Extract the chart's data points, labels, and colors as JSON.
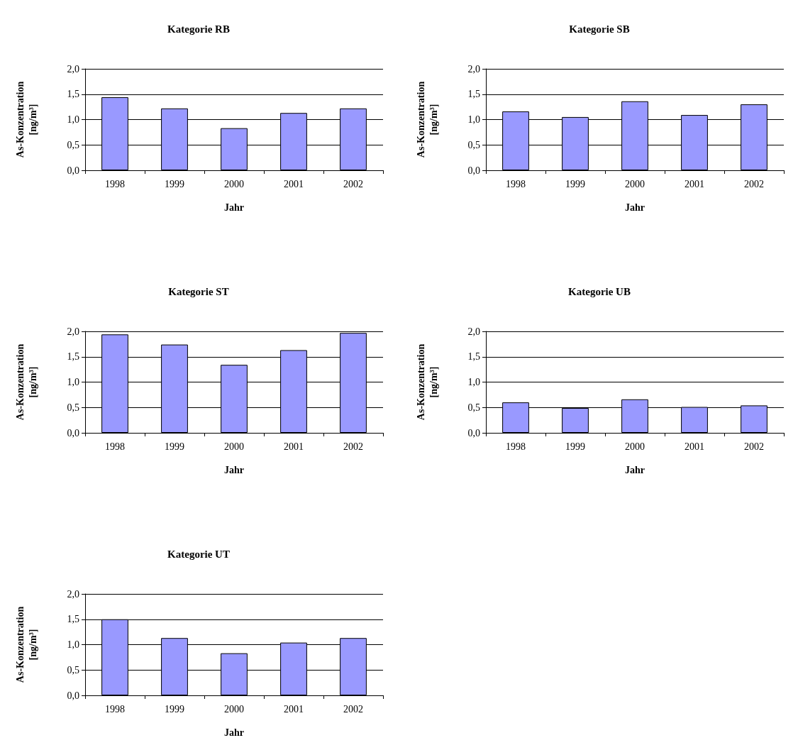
{
  "chart_data": [
    {
      "type": "bar",
      "title": "Kategorie RB",
      "xlabel": "Jahr",
      "ylabel": "As-Konzentration\n[ng/m³]",
      "categories": [
        "1998",
        "1999",
        "2000",
        "2001",
        "2002"
      ],
      "values": [
        1.44,
        1.22,
        0.83,
        1.13,
        1.22
      ],
      "color": "#9999ff",
      "ylim": [
        0,
        2
      ],
      "yticks": [
        {
          "value": 0,
          "label": "0,0"
        },
        {
          "value": 0.5,
          "label": "0,5"
        },
        {
          "value": 1,
          "label": "1,0"
        },
        {
          "value": 1.5,
          "label": "1,5"
        },
        {
          "value": 2,
          "label": "2,0"
        }
      ],
      "grid": "y"
    },
    {
      "type": "bar",
      "title": "Kategorie SB",
      "xlabel": "Jahr",
      "ylabel": "As-Konzentration\n[ng/m³]",
      "categories": [
        "1998",
        "1999",
        "2000",
        "2001",
        "2002"
      ],
      "values": [
        1.16,
        1.05,
        1.36,
        1.09,
        1.3
      ],
      "color": "#9999ff",
      "ylim": [
        0,
        2
      ],
      "yticks": [
        {
          "value": 0,
          "label": "0,0"
        },
        {
          "value": 0.5,
          "label": "0,5"
        },
        {
          "value": 1,
          "label": "1,0"
        },
        {
          "value": 1.5,
          "label": "1,5"
        },
        {
          "value": 2,
          "label": "2,0"
        }
      ],
      "grid": "y"
    },
    {
      "type": "bar",
      "title": "Kategorie ST",
      "xlabel": "Jahr",
      "ylabel": "As-Konzentration\n[ng/m³]",
      "categories": [
        "1998",
        "1999",
        "2000",
        "2001",
        "2002"
      ],
      "values": [
        1.94,
        1.74,
        1.34,
        1.63,
        1.97
      ],
      "color": "#9999ff",
      "ylim": [
        0,
        2
      ],
      "yticks": [
        {
          "value": 0,
          "label": "0,0"
        },
        {
          "value": 0.5,
          "label": "0,5"
        },
        {
          "value": 1,
          "label": "1,0"
        },
        {
          "value": 1.5,
          "label": "1,5"
        },
        {
          "value": 2,
          "label": "2,0"
        }
      ],
      "grid": "y"
    },
    {
      "type": "bar",
      "title": "Kategorie UB",
      "xlabel": "Jahr",
      "ylabel": "As-Konzentration\n[ng/m³]",
      "categories": [
        "1998",
        "1999",
        "2000",
        "2001",
        "2002"
      ],
      "values": [
        0.6,
        0.49,
        0.66,
        0.51,
        0.54
      ],
      "color": "#9999ff",
      "ylim": [
        0,
        2
      ],
      "yticks": [
        {
          "value": 0,
          "label": "0,0"
        },
        {
          "value": 0.5,
          "label": "0,5"
        },
        {
          "value": 1,
          "label": "1,0"
        },
        {
          "value": 1.5,
          "label": "1,5"
        },
        {
          "value": 2,
          "label": "2,0"
        }
      ],
      "grid": "y"
    },
    {
      "type": "bar",
      "title": "Kategorie UT",
      "xlabel": "Jahr",
      "ylabel": "As-Konzentration\n[ng/m³]",
      "categories": [
        "1998",
        "1999",
        "2000",
        "2001",
        "2002"
      ],
      "values": [
        1.5,
        1.13,
        0.83,
        1.04,
        1.13
      ],
      "color": "#9999ff",
      "ylim": [
        0,
        2
      ],
      "yticks": [
        {
          "value": 0,
          "label": "0,0"
        },
        {
          "value": 0.5,
          "label": "0,5"
        },
        {
          "value": 1,
          "label": "1,0"
        },
        {
          "value": 1.5,
          "label": "1,5"
        },
        {
          "value": 2,
          "label": "2,0"
        }
      ],
      "grid": "y"
    }
  ]
}
